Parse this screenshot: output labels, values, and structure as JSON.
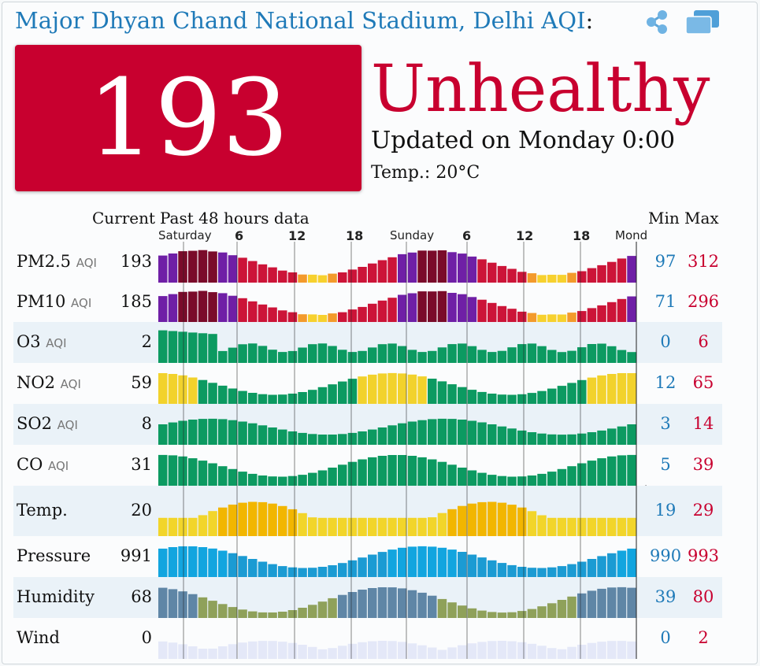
{
  "header": {
    "station": "Major Dhyan Chand National Stadium, Delhi AQI",
    "colon": ":",
    "truncated": "Ma"
  },
  "icons": {
    "share": "share-icon",
    "screens": "screens-icon"
  },
  "current": {
    "aqi": "193",
    "status": "Unhealthy",
    "updated": "Updated on Monday 0:00",
    "temp": "Temp.: 20°C"
  },
  "colors": {
    "status": "#c8002f",
    "min": "#1f7ab8",
    "max": "#c8002f"
  },
  "table": {
    "current_label": "Current",
    "past_label": "Past 48 hours data",
    "min_label": "Min",
    "max_label": "Max",
    "axis": [
      "Saturday",
      "6",
      "12",
      "18",
      "Sunday",
      "6",
      "12",
      "18",
      "Mond"
    ]
  },
  "rows": [
    {
      "id": "pm25",
      "label": "PM2.5",
      "sub": "AQI",
      "current": "193",
      "min": "97",
      "max": "312"
    },
    {
      "id": "pm10",
      "label": "PM10",
      "sub": "AQI",
      "current": "185",
      "min": "71",
      "max": "296"
    },
    {
      "id": "o3",
      "label": "O3",
      "sub": "AQI",
      "current": "2",
      "min": "0",
      "max": "6"
    },
    {
      "id": "no2",
      "label": "NO2",
      "sub": "AQI",
      "current": "59",
      "min": "12",
      "max": "65"
    },
    {
      "id": "so2",
      "label": "SO2",
      "sub": "AQI",
      "current": "8",
      "min": "3",
      "max": "14"
    },
    {
      "id": "co",
      "label": "CO",
      "sub": "AQI",
      "current": "31",
      "min": "5",
      "max": "39"
    },
    {
      "id": "temp",
      "label": "Temp.",
      "sub": "",
      "current": "20",
      "min": "19",
      "max": "29"
    },
    {
      "id": "pressure",
      "label": "Pressure",
      "sub": "",
      "current": "991",
      "min": "990",
      "max": "993"
    },
    {
      "id": "humidity",
      "label": "Humidity",
      "sub": "",
      "current": "68",
      "min": "39",
      "max": "80"
    },
    {
      "id": "wind",
      "label": "Wind",
      "sub": "",
      "current": "0",
      "min": "0",
      "max": "2"
    }
  ]
}
